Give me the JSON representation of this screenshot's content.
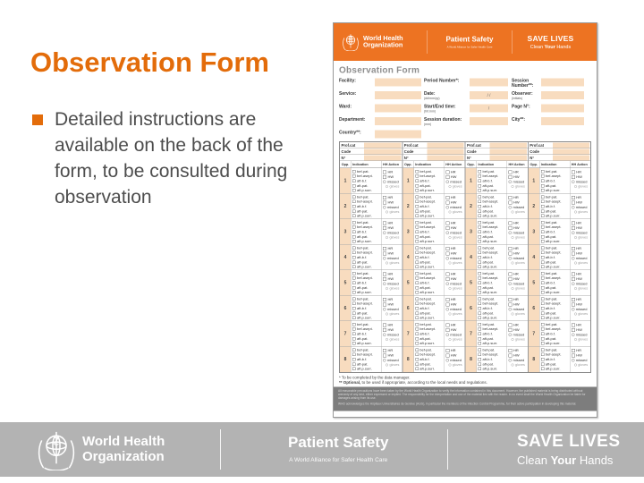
{
  "colors": {
    "accent": "#e36c0a",
    "banner_orange": "#ed7322",
    "input_peach": "#f8dcbf",
    "footer_gray": "#b3b3b3"
  },
  "slide": {
    "title": "Observation Form",
    "bullet_text": "Detailed instructions are available on the back of the form, to be consulted during observation"
  },
  "brand": {
    "who_line1": "World Health",
    "who_line2": "Organization",
    "patient_safety": "Patient Safety",
    "patient_safety_sub": "A World Alliance for Safer Health Care",
    "save_lives": "SAVE LIVES",
    "clean_pre": "Clean ",
    "clean_your": "Your",
    "clean_post": " Hands"
  },
  "form": {
    "title": "Observation Form",
    "field_rows": [
      [
        {
          "label": "Facility:"
        },
        {
          "label": "Period Number*:"
        },
        {
          "label": "Session Number**:"
        }
      ],
      [
        {
          "label": "Service:"
        },
        {
          "label": "Date:",
          "sub": "(dd/mm/yy)",
          "value": "/      /"
        },
        {
          "label": "Observer:",
          "sub": "(initials)"
        }
      ],
      [
        {
          "label": "Ward:"
        },
        {
          "label": "Start/End time:",
          "sub": "(hh:mm)",
          "value": "/"
        },
        {
          "label": "Page N°:"
        }
      ],
      [
        {
          "label": "Department:"
        },
        {
          "label": "Session duration:",
          "sub": "(mm)"
        },
        {
          "label": "City**:"
        }
      ],
      [
        {
          "label": "Country**:"
        }
      ]
    ],
    "table": {
      "group_count": 4,
      "prof_cat_label": "Prof.cat",
      "code_label": "Code",
      "number_label": "N°",
      "col_headers": [
        "Opp.",
        "Indication",
        "HH Action"
      ],
      "opportunities": [
        "1",
        "2",
        "3",
        "4",
        "5",
        "6",
        "7",
        "8"
      ],
      "indications": [
        "bef-pat.",
        "bef-asept.",
        "aft-b.f.",
        "aft-pat.",
        "aft.p.surr."
      ],
      "action_checkboxes": [
        "HR",
        "HW"
      ],
      "action_radio": "missed",
      "action_radio_muted": "gloves"
    },
    "footnote1": "* To be completed by the data manager.",
    "footnote2_bold": "** Optional,",
    "footnote2_rest": " to be used if appropriate, according to the local needs and regulations.",
    "disclaimer_p1": "All reasonable precautions have been taken by the World Health Organization to verify the information contained in this document. However, the published material is being distributed without warranty of any kind, either expressed or implied. The responsibility for the interpretation and use of the material lies with the reader. In no event shall the World Health Organization be liable for damages arising from its use.",
    "disclaimer_p2": "WHO acknowledges the Hôpitaux Universitaires de Genève (HUG), in particular the members of the Infection Control Programme, for their active participation in developing this material."
  }
}
